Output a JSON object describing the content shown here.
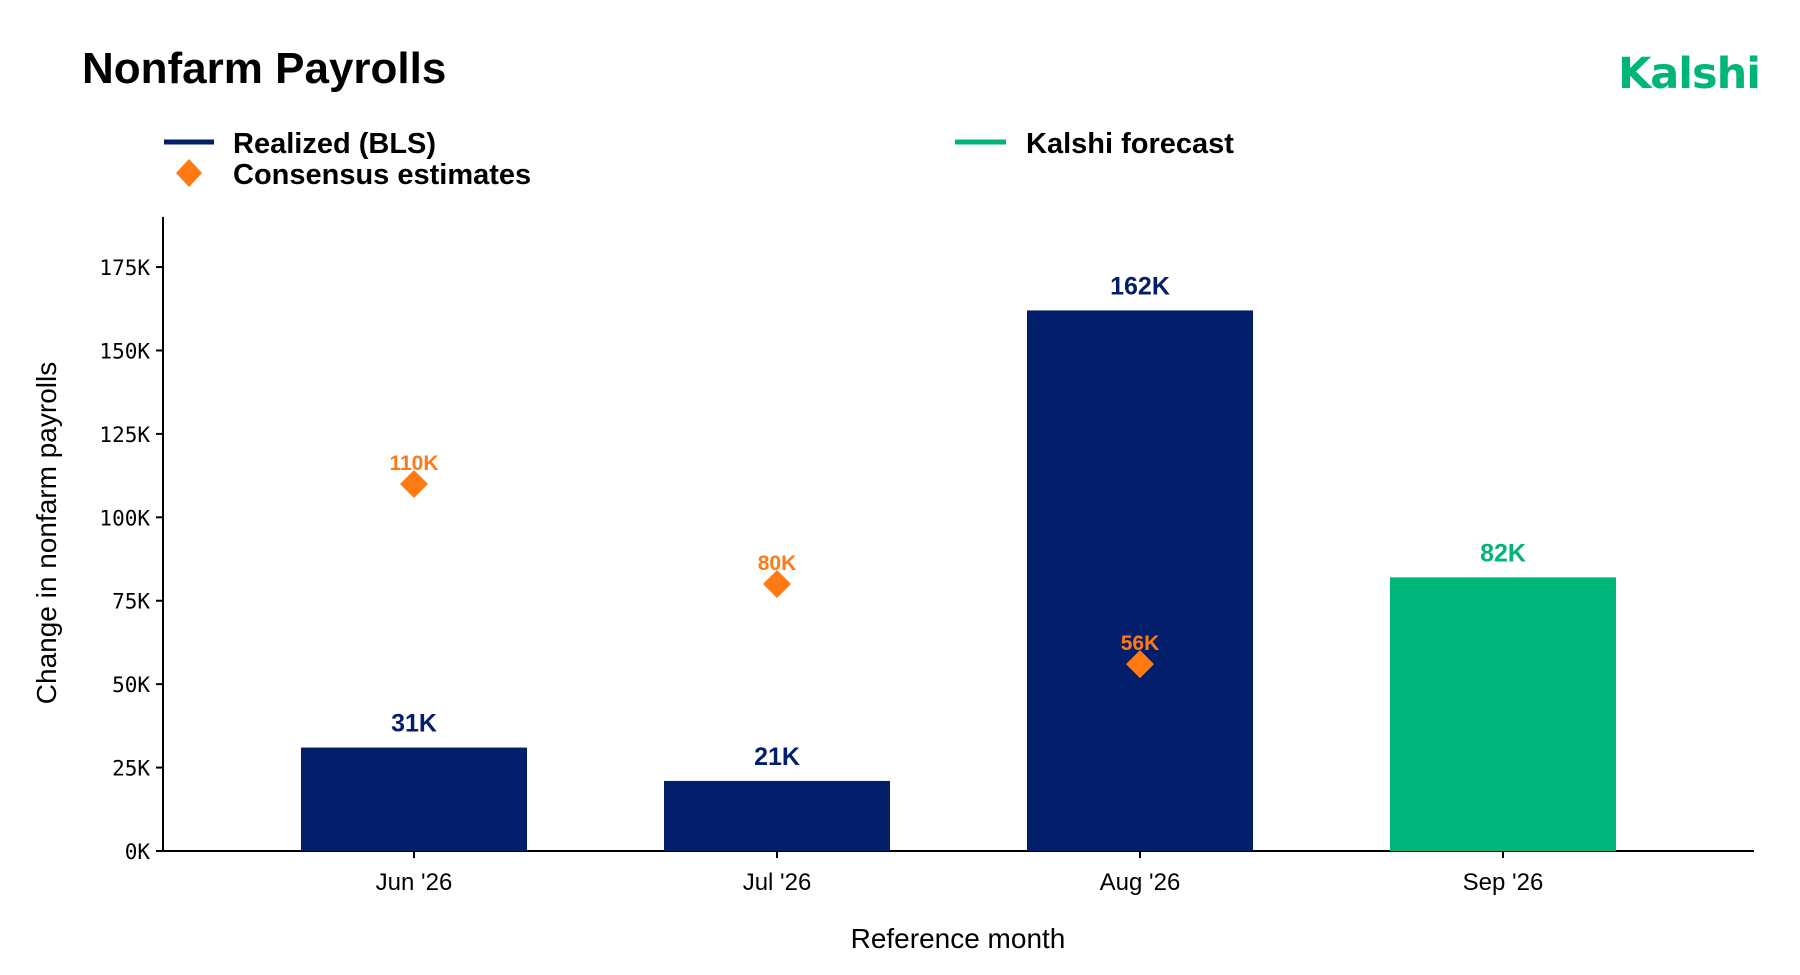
{
  "brand": {
    "name": "Kalshi",
    "color": "#00b57a"
  },
  "legend": [
    {
      "label": "Realized (BLS)",
      "color": "#031f6b",
      "marker": "line"
    },
    {
      "label": "Consensus estimates",
      "color": "#ff7a12",
      "marker": "diamond"
    },
    {
      "label": "Kalshi forecast",
      "color": "#00b57a",
      "marker": "line"
    }
  ],
  "chart_data": {
    "type": "bar",
    "title": "Nonfarm Payrolls",
    "xlabel": "Reference month",
    "ylabel": "Change in nonfarm payrolls",
    "ylim": [
      0,
      190000
    ],
    "yticks": [
      0,
      25000,
      50000,
      75000,
      100000,
      125000,
      150000,
      175000
    ],
    "ytick_labels": [
      "0K",
      "25K",
      "50K",
      "75K",
      "100K",
      "125K",
      "150K",
      "175K"
    ],
    "categories": [
      "Jun '26",
      "Jul '26",
      "Aug '26",
      "Sep '26"
    ],
    "grid": false,
    "legend_position": "top-left",
    "series": [
      {
        "name": "Realized (BLS)",
        "type": "bar",
        "color": "#031f6b",
        "values": [
          31000,
          21000,
          162000,
          null
        ],
        "labels": [
          "31K",
          "21K",
          "162K",
          null
        ]
      },
      {
        "name": "Kalshi forecast",
        "type": "bar",
        "color": "#00b57a",
        "values": [
          null,
          null,
          null,
          82000
        ],
        "labels": [
          null,
          null,
          null,
          "82K"
        ]
      },
      {
        "name": "Consensus estimates",
        "type": "scatter",
        "marker": "diamond",
        "color": "#ff7a12",
        "values": [
          110000,
          80000,
          56000,
          null
        ],
        "labels": [
          "110K",
          "80K",
          "56K",
          null
        ]
      }
    ]
  }
}
